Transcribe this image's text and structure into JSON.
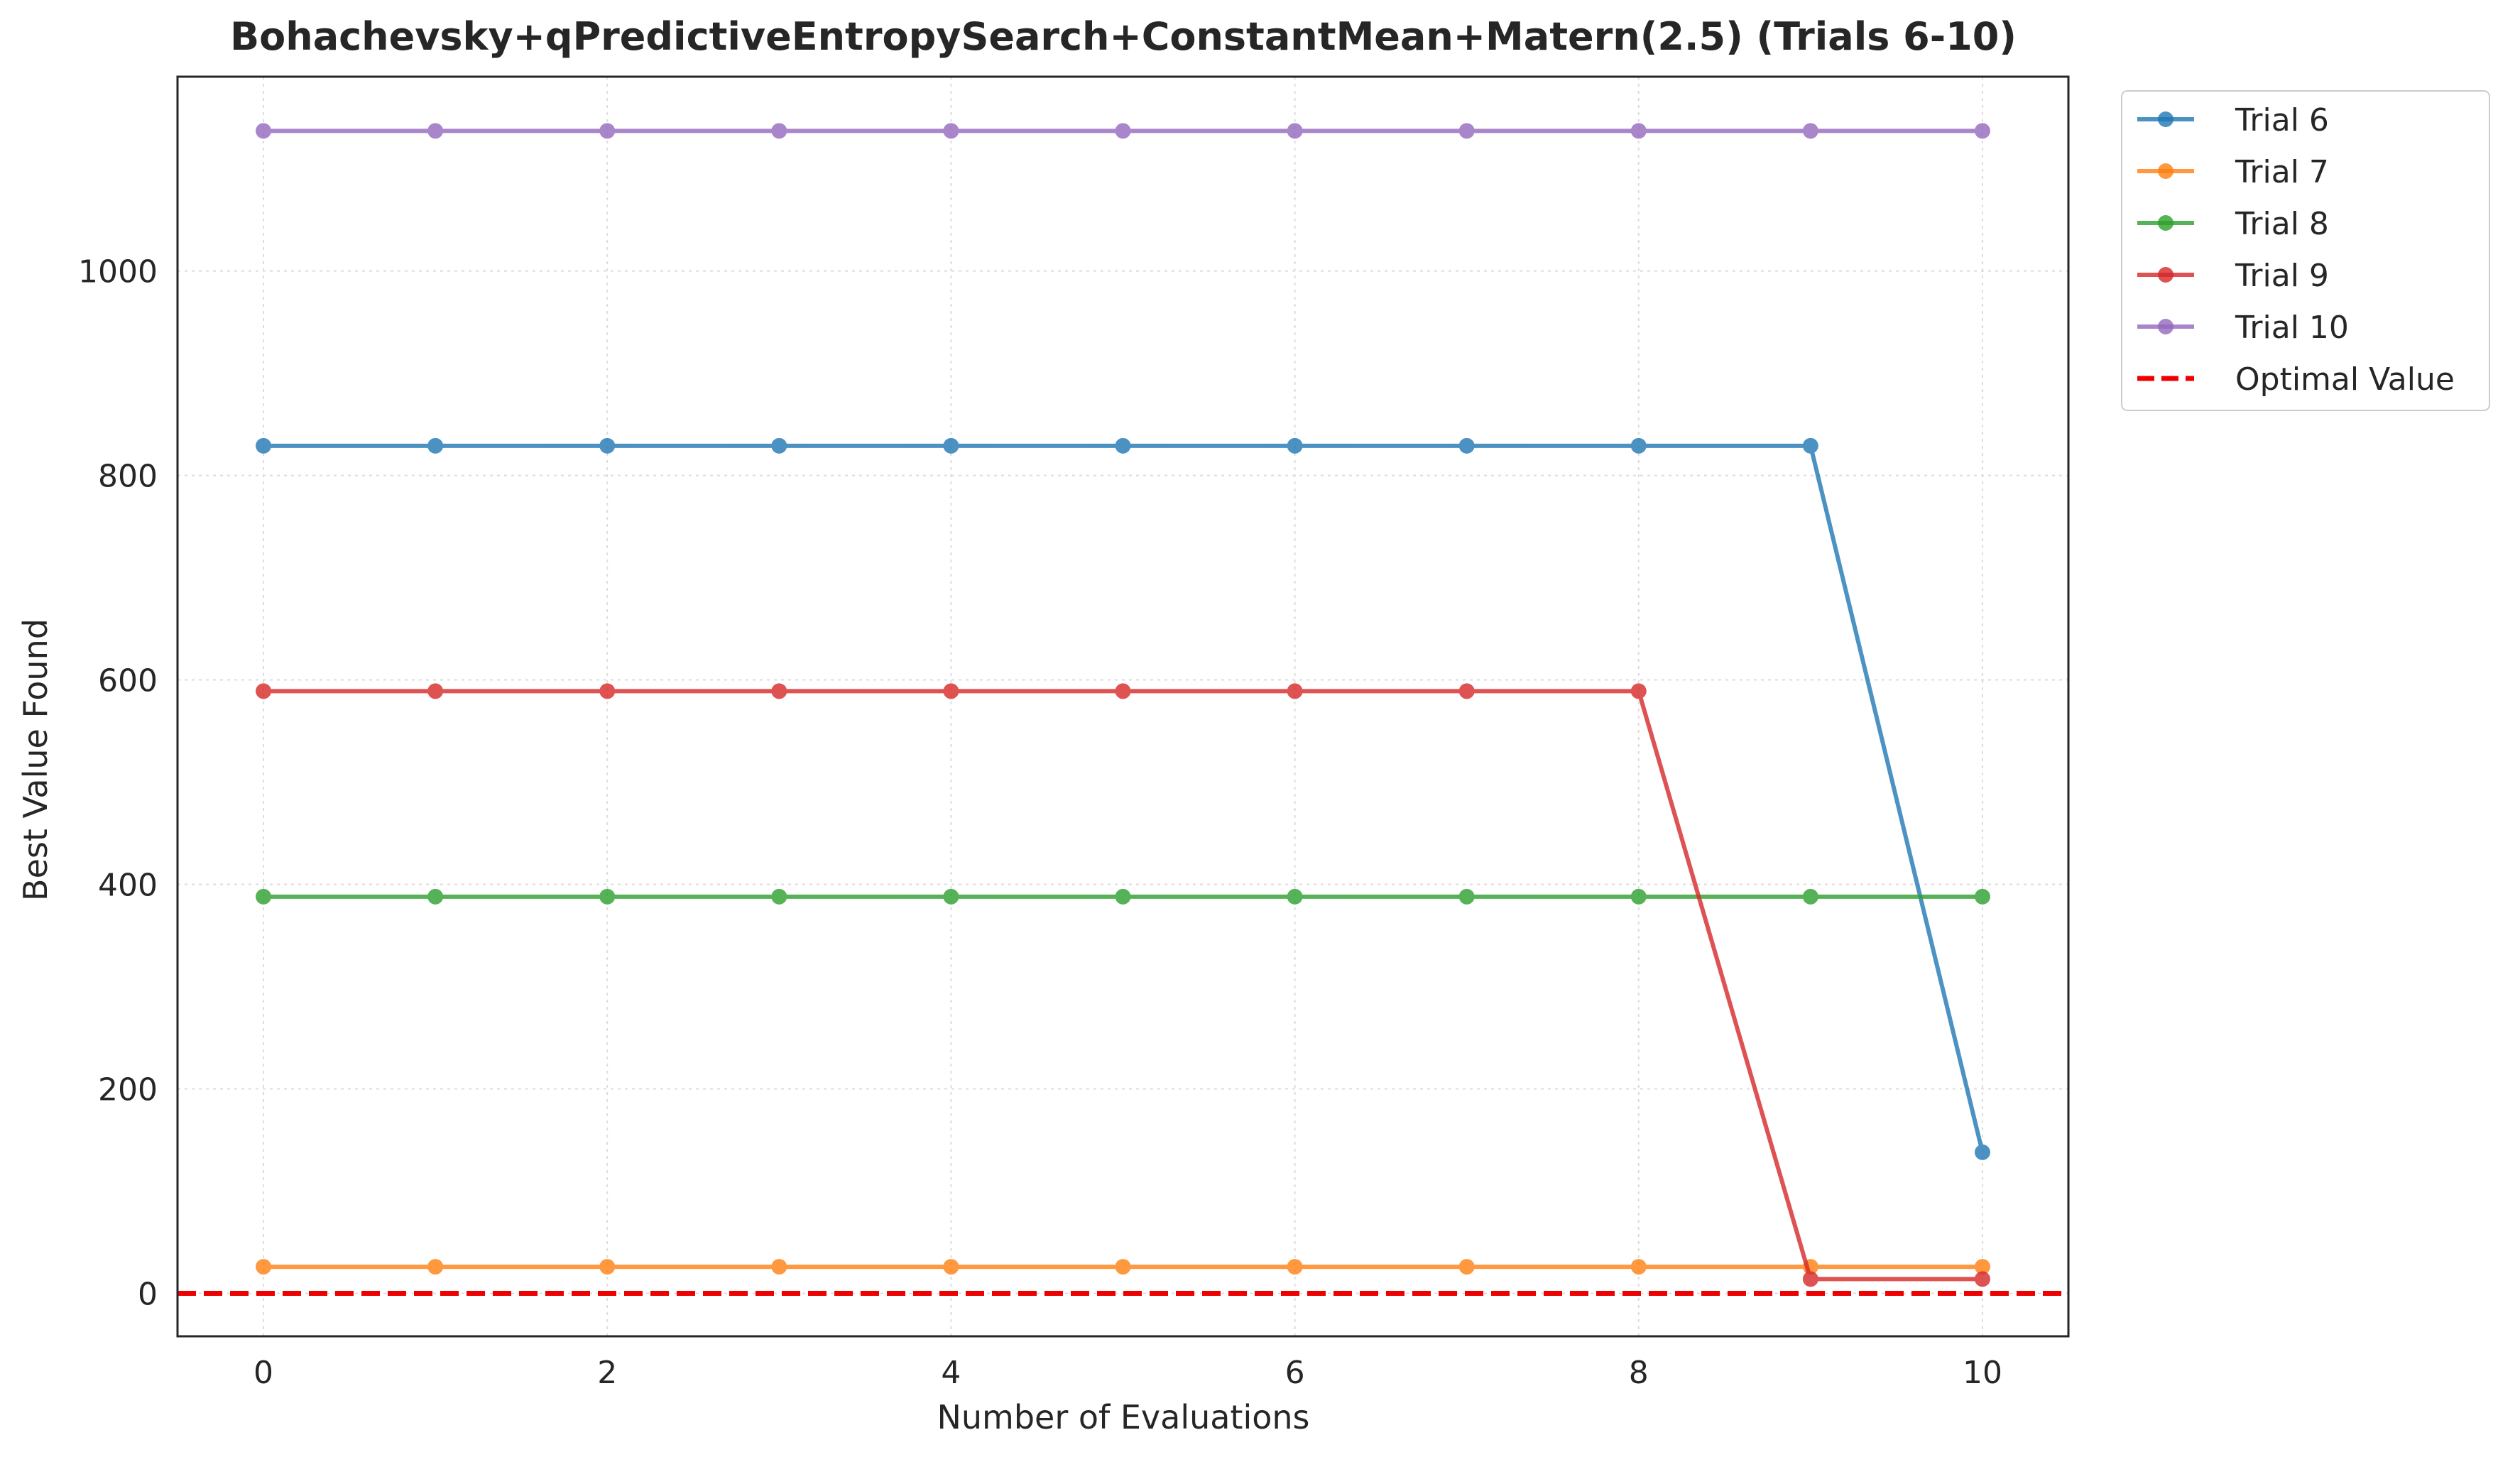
{
  "chart_data": {
    "type": "line",
    "title": "Bohachevsky+qPredictiveEntropySearch+ConstantMean+Matern(2.5) (Trials 6-10)",
    "xlabel": "Number of Evaluations",
    "ylabel": "Best Value Found",
    "x": [
      0,
      1,
      2,
      3,
      4,
      5,
      6,
      7,
      8,
      9,
      10
    ],
    "xlim": [
      -0.5,
      10.5
    ],
    "ylim": [
      -42,
      1190
    ],
    "xticks": [
      0,
      2,
      4,
      6,
      8,
      10
    ],
    "yticks": [
      0,
      200,
      400,
      600,
      800,
      1000
    ],
    "grid": true,
    "legend_position": "outside-top-right",
    "series": [
      {
        "name": "Trial 6",
        "color": "#1f77b4",
        "values": [
          829,
          829,
          829,
          829,
          829,
          829,
          829,
          829,
          829,
          829,
          138
        ]
      },
      {
        "name": "Trial 7",
        "color": "#ff7f0e",
        "values": [
          26,
          26,
          26,
          26,
          26,
          26,
          26,
          26,
          26,
          26,
          26
        ]
      },
      {
        "name": "Trial 8",
        "color": "#2ca02c",
        "values": [
          388,
          388,
          388,
          388,
          388,
          388,
          388,
          388,
          388,
          388,
          388
        ]
      },
      {
        "name": "Trial 9",
        "color": "#d62728",
        "values": [
          589,
          589,
          589,
          589,
          589,
          589,
          589,
          589,
          589,
          14,
          14
        ]
      },
      {
        "name": "Trial 10",
        "color": "#9467bd",
        "values": [
          1137,
          1137,
          1137,
          1137,
          1137,
          1137,
          1137,
          1137,
          1137,
          1137,
          1137
        ]
      }
    ],
    "reference_line": {
      "name": "Optimal Value",
      "value": 0,
      "color": "#ee0000",
      "style": "dashed"
    }
  }
}
